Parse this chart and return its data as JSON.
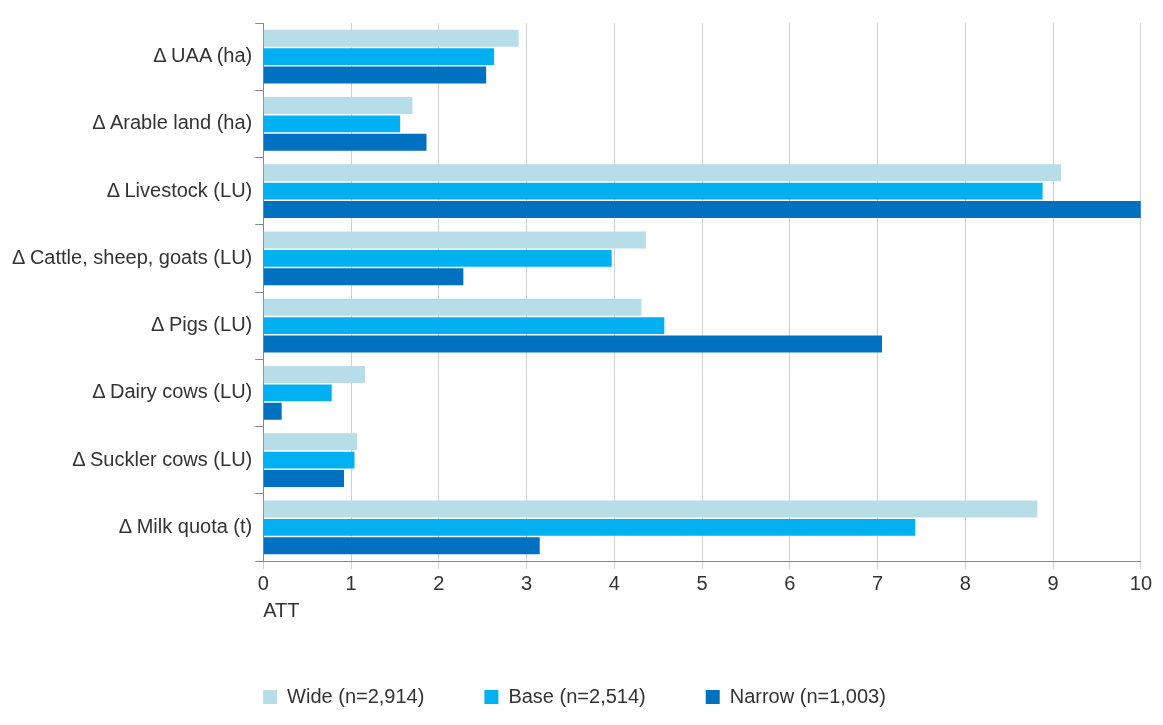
{
  "chart_data": {
    "type": "bar",
    "orientation": "horizontal",
    "xlabel": "ATT",
    "categories": [
      "Δ UAA (ha)",
      "Δ Arable land (ha)",
      "Δ Livestock (LU)",
      "Δ Cattle, sheep, goats (LU)",
      "Δ Pigs (LU)",
      "Δ Dairy cows (LU)",
      "Δ Suckler cows (LU)",
      "Δ Milk quota (t)"
    ],
    "series": [
      {
        "name": "Wide (n=2,914)",
        "color": "#b7dde8",
        "values": [
          2.91,
          1.7,
          9.09,
          4.36,
          4.31,
          1.16,
          1.07,
          8.82
        ]
      },
      {
        "name": "Base (n=2,514)",
        "color": "#00b0f0",
        "values": [
          2.63,
          1.56,
          8.88,
          3.97,
          4.57,
          0.78,
          1.04,
          7.43
        ]
      },
      {
        "name": "Narrow (n=1,003)",
        "color": "#0070c0",
        "values": [
          2.54,
          1.86,
          10.0,
          2.28,
          7.05,
          0.21,
          0.92,
          3.15
        ]
      }
    ],
    "xlim": [
      0,
      10
    ],
    "xticks": [
      0,
      1,
      2,
      3,
      4,
      5,
      6,
      7,
      8,
      9,
      10
    ],
    "grid": "x",
    "legend": "bottom"
  }
}
